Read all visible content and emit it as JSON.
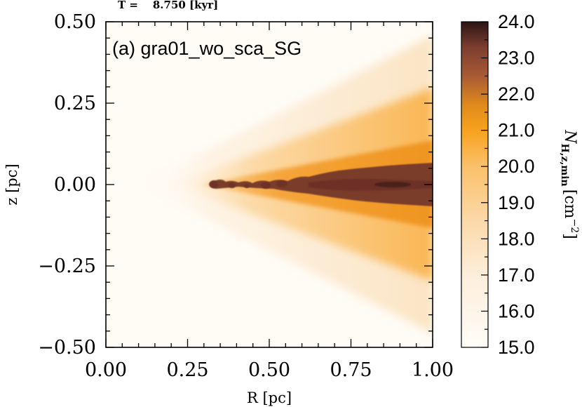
{
  "chart_data": {
    "type": "heatmap",
    "header": "T =    8.750 [kyr]",
    "title": "(a) gra01_wo_sca_SG",
    "xlabel": "R [pc]",
    "ylabel": "z [pc]",
    "xlim": [
      0.0,
      1.0
    ],
    "ylim": [
      -0.5,
      0.5
    ],
    "x_ticks": [
      0.0,
      0.25,
      0.5,
      0.75,
      1.0
    ],
    "x_tick_labels": [
      "0.00",
      "0.25",
      "0.50",
      "0.75",
      "1.00"
    ],
    "y_ticks": [
      0.5,
      0.25,
      0.0,
      -0.25,
      -0.5
    ],
    "y_tick_labels": [
      "0.50",
      "0.25",
      "0.00",
      "−0.25",
      "−0.50"
    ],
    "colorbar": {
      "label": "N",
      "label_sub": "H,z,min",
      "label_unit": "[cm",
      "label_exp": "−2",
      "label_close": "]",
      "range": [
        15.0,
        24.0
      ],
      "ticks": [
        15.0,
        16.0,
        17.0,
        18.0,
        19.0,
        20.0,
        21.0,
        22.0,
        23.0,
        24.0
      ],
      "tick_labels": [
        "15.0",
        "16.0",
        "17.0",
        "18.0",
        "19.0",
        "20.0",
        "21.0",
        "22.0",
        "23.0",
        "24.0"
      ],
      "colors": [
        {
          "value": 15.0,
          "color": "#fffcf7"
        },
        {
          "value": 17.0,
          "color": "#fdeedb"
        },
        {
          "value": 18.5,
          "color": "#fbd9a8"
        },
        {
          "value": 20.0,
          "color": "#fbc06a"
        },
        {
          "value": 21.0,
          "color": "#f8a21e"
        },
        {
          "value": 21.7,
          "color": "#e08a1c"
        },
        {
          "value": 22.5,
          "color": "#a85a34"
        },
        {
          "value": 23.3,
          "color": "#7c3e30"
        },
        {
          "value": 24.0,
          "color": "#2a1414"
        }
      ]
    },
    "disk": {
      "inner_edge_R": 0.32,
      "dense_midplane_logN": 23.2,
      "envelope_logN": 20.5,
      "background_logN": 15.5,
      "cone_half_opening_z_at_R1": 0.5
    }
  }
}
